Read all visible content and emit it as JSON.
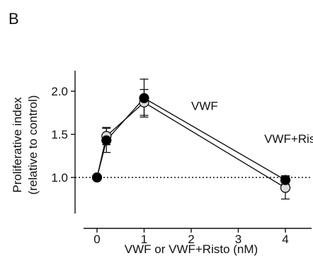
{
  "panel_label": "B",
  "chart_data": {
    "type": "line",
    "xlabel": "VWF or VWF+Risto (nM)",
    "ylabel_lines": [
      "Proliferative index",
      "(relative to control)"
    ],
    "xlim": [
      -0.3,
      4.5
    ],
    "ylim": [
      0.6,
      2.2
    ],
    "xticks": [
      0,
      1,
      2,
      3,
      4
    ],
    "xtick_labels": [
      "0",
      "1",
      "2",
      "3",
      "4"
    ],
    "yticks": [
      1.0,
      1.5,
      2.0
    ],
    "ytick_labels": [
      "1.0",
      "1.5",
      "2.0"
    ],
    "reference_line": {
      "y": 1.0,
      "style": "dotted"
    },
    "grid": false,
    "series": [
      {
        "name": "VWF+Risto",
        "marker": "open-circle",
        "color": "#dddddd",
        "x": [
          0,
          0.2,
          1,
          4
        ],
        "y": [
          1.0,
          1.48,
          1.87,
          0.88
        ],
        "err": [
          0,
          0.1,
          0.15,
          0.13
        ]
      },
      {
        "name": "VWF",
        "marker": "filled-circle",
        "color": "#000000",
        "x": [
          0,
          0.2,
          1,
          4
        ],
        "y": [
          1.0,
          1.43,
          1.92,
          0.97
        ],
        "err": [
          0,
          0.14,
          0.22,
          0.05
        ]
      }
    ],
    "annotations": [
      {
        "text": "VWF",
        "x": 2.0,
        "y": 1.83
      },
      {
        "text": "VWF+Risto",
        "x": 3.55,
        "y": 1.45
      }
    ]
  }
}
